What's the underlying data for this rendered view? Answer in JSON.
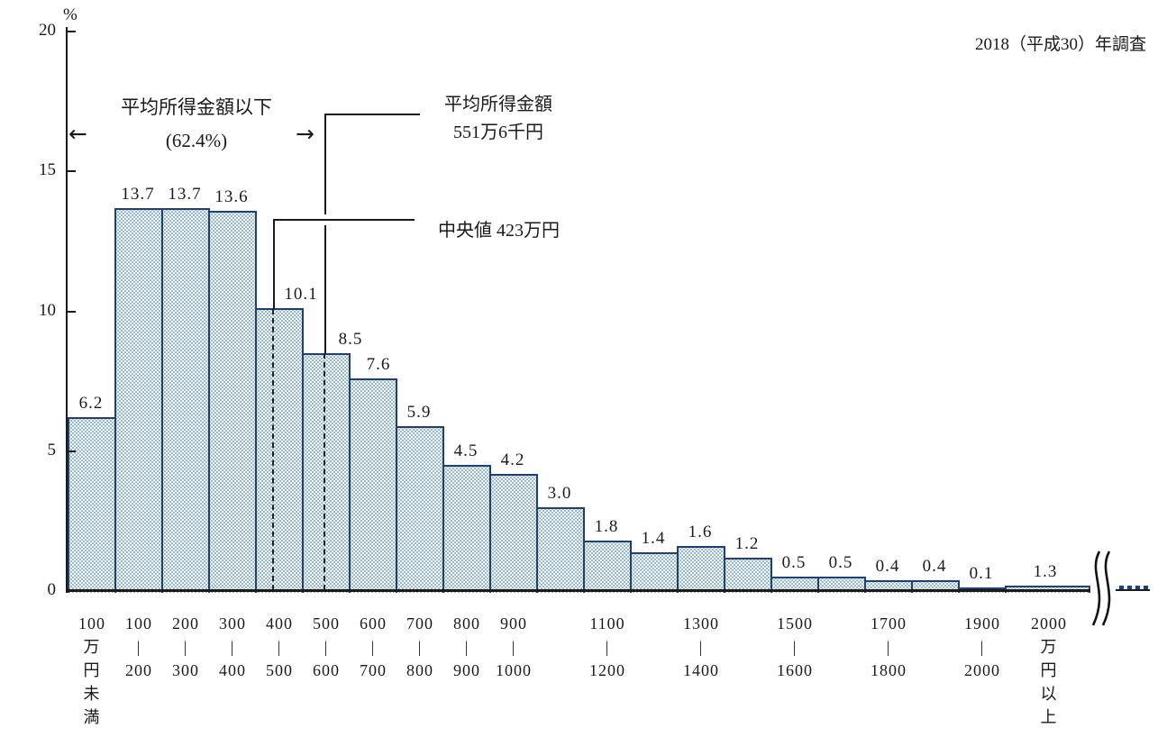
{
  "chart_data": {
    "type": "bar",
    "unit_label": "%",
    "ylim": [
      0,
      20
    ],
    "yticks": [
      "0",
      "5",
      "10",
      "15",
      "20"
    ],
    "categories": [
      "100万円未満",
      "100-200",
      "200-300",
      "300-400",
      "400-500",
      "500-600",
      "600-700",
      "700-800",
      "800-900",
      "900-1000",
      "1000-1100",
      "1100-1200",
      "1200-1300",
      "1300-1400",
      "1400-1500",
      "1500-1600",
      "1600-1700",
      "1700-1800",
      "1800-1900",
      "1900-2000",
      "2000万円以上"
    ],
    "values": [
      6.2,
      13.7,
      13.7,
      13.6,
      10.1,
      8.5,
      7.6,
      5.9,
      4.5,
      4.2,
      3.0,
      1.8,
      1.4,
      1.6,
      1.2,
      0.5,
      0.5,
      0.4,
      0.4,
      0.1,
      1.3
    ],
    "grid": false,
    "legend": false,
    "x_tick_labels": [
      {
        "bar_index": 0,
        "orientation": "vertical",
        "lines": [
          "100",
          "万",
          "円",
          "未",
          "満"
        ]
      },
      {
        "bar_index": 1,
        "orientation": "range",
        "top": "100",
        "bottom": "200"
      },
      {
        "bar_index": 2,
        "orientation": "range",
        "top": "200",
        "bottom": "300"
      },
      {
        "bar_index": 3,
        "orientation": "range",
        "top": "300",
        "bottom": "400"
      },
      {
        "bar_index": 4,
        "orientation": "range",
        "top": "400",
        "bottom": "500"
      },
      {
        "bar_index": 5,
        "orientation": "range",
        "top": "500",
        "bottom": "600"
      },
      {
        "bar_index": 6,
        "orientation": "range",
        "top": "600",
        "bottom": "700"
      },
      {
        "bar_index": 7,
        "orientation": "range",
        "top": "700",
        "bottom": "800"
      },
      {
        "bar_index": 8,
        "orientation": "range",
        "top": "800",
        "bottom": "900"
      },
      {
        "bar_index": 9,
        "orientation": "range",
        "top": "900",
        "bottom": "1000"
      },
      {
        "bar_index": 11,
        "orientation": "range",
        "top": "1100",
        "bottom": "1200"
      },
      {
        "bar_index": 13,
        "orientation": "range",
        "top": "1300",
        "bottom": "1400"
      },
      {
        "bar_index": 15,
        "orientation": "range",
        "top": "1500",
        "bottom": "1600"
      },
      {
        "bar_index": 17,
        "orientation": "range",
        "top": "1700",
        "bottom": "1800"
      },
      {
        "bar_index": 19,
        "orientation": "range",
        "top": "1900",
        "bottom": "2000"
      },
      {
        "bar_index": 20,
        "orientation": "vertical",
        "lines": [
          "2000",
          "万",
          "円",
          "以",
          "上"
        ]
      }
    ],
    "annotations": {
      "below_mean_line1": "平均所得金額以下",
      "below_mean_line2": "(62.4%)",
      "mean_line1": "平均所得金額",
      "mean_line2": "551万6千円",
      "mean_value": 551.6,
      "median_label": "中央値 423万円",
      "median_value": 423,
      "survey_note": "2018（平成30）年調査"
    },
    "icons": {
      "left_arrow": "←",
      "right_arrow": "→"
    },
    "colors": {
      "bar_border": "#1f4070",
      "bar_dots": "#4d8cb3",
      "axis": "#1a1a1a",
      "text": "#1a1a1a"
    }
  }
}
